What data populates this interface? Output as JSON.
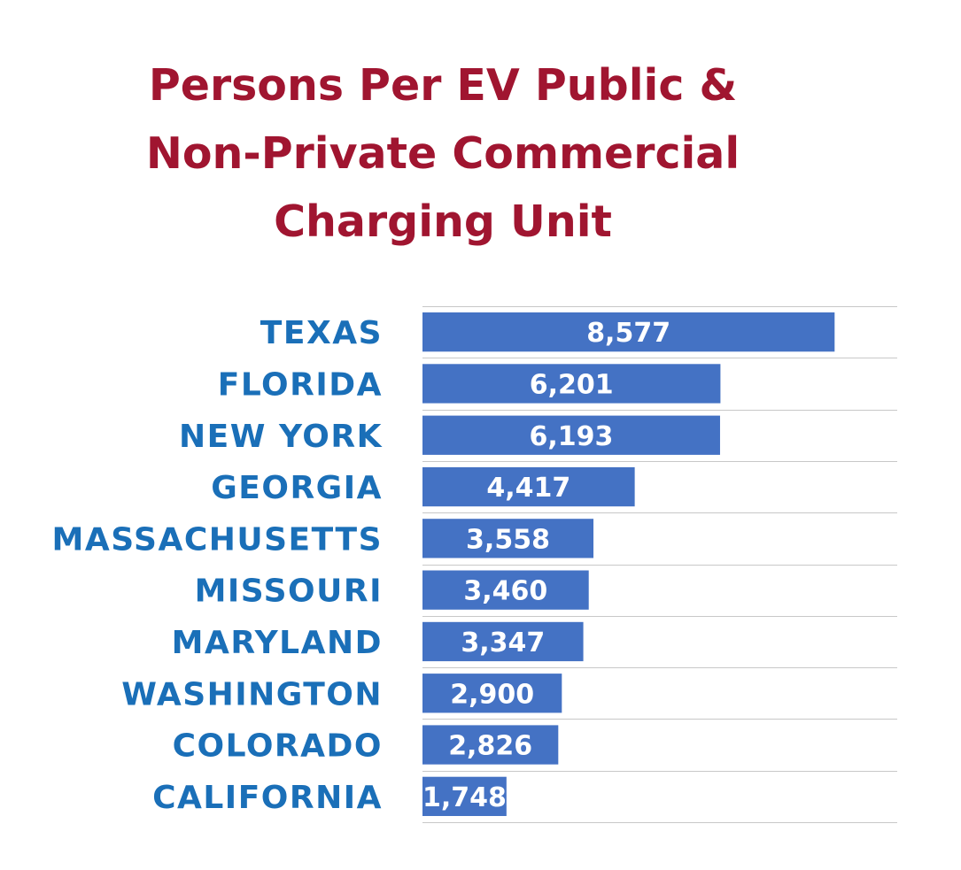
{
  "chart_data": {
    "type": "bar",
    "orientation": "horizontal",
    "title_lines": [
      "Persons Per EV Public &",
      "Non-Private Commercial",
      "Charging Unit"
    ],
    "categories": [
      "TEXAS",
      "FLORIDA",
      "NEW YORK",
      "GEORGIA",
      "MASSACHUSETTS",
      "MISSOURI",
      "MARYLAND",
      "WASHINGTON",
      "COLORADO",
      "CALIFORNIA"
    ],
    "values": [
      8577,
      6201,
      6193,
      4417,
      3558,
      3460,
      3347,
      2900,
      2826,
      1748
    ],
    "value_labels": [
      "8,577",
      "6,201",
      "6,193",
      "4,417",
      "3,558",
      "3,460",
      "3,347",
      "2,900",
      "2,826",
      "1,748"
    ],
    "xlim": [
      0,
      10000
    ],
    "grid": true,
    "legend": "none",
    "colors": {
      "bar": "#4472c4",
      "category_label": "#1a6fb8",
      "title": "#a01530",
      "value_label": "#ffffff"
    }
  }
}
